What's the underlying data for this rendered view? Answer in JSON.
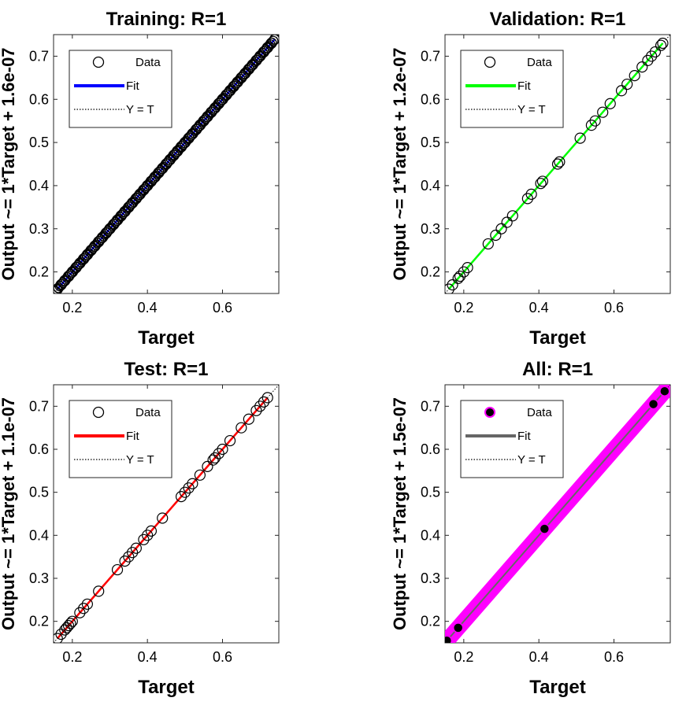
{
  "chart_data": [
    {
      "type": "scatter",
      "title": "Training: R=1",
      "xlabel": "Target",
      "ylabel": "Output ~= 1*Target + 1.6e-07",
      "xlim": [
        0.15,
        0.75
      ],
      "ylim": [
        0.15,
        0.75
      ],
      "xticks": [
        0.2,
        0.4,
        0.6
      ],
      "yticks": [
        0.2,
        0.3,
        0.4,
        0.5,
        0.6,
        0.7
      ],
      "fit_color": "#0000ff",
      "marker_fill": "none",
      "legend": {
        "position": "top-left",
        "entries": [
          "Data",
          "Fit",
          "Y = T"
        ]
      },
      "fit": {
        "slope": 1,
        "intercept": 1.6e-07
      },
      "series": [
        {
          "name": "Data",
          "x": [
            0.16,
            0.17,
            0.18,
            0.19,
            0.2,
            0.21,
            0.22,
            0.23,
            0.24,
            0.25,
            0.26,
            0.27,
            0.28,
            0.29,
            0.3,
            0.31,
            0.32,
            0.33,
            0.34,
            0.35,
            0.36,
            0.37,
            0.38,
            0.39,
            0.4,
            0.41,
            0.42,
            0.43,
            0.44,
            0.45,
            0.46,
            0.47,
            0.48,
            0.49,
            0.5,
            0.51,
            0.52,
            0.53,
            0.54,
            0.55,
            0.56,
            0.57,
            0.58,
            0.59,
            0.6,
            0.61,
            0.62,
            0.63,
            0.64,
            0.65,
            0.66,
            0.67,
            0.68,
            0.69,
            0.7,
            0.71,
            0.72,
            0.73,
            0.74
          ],
          "y": [
            0.16,
            0.17,
            0.18,
            0.19,
            0.2,
            0.21,
            0.22,
            0.23,
            0.24,
            0.25,
            0.26,
            0.27,
            0.28,
            0.29,
            0.3,
            0.31,
            0.32,
            0.33,
            0.34,
            0.35,
            0.36,
            0.37,
            0.38,
            0.39,
            0.4,
            0.41,
            0.42,
            0.43,
            0.44,
            0.45,
            0.46,
            0.47,
            0.48,
            0.49,
            0.5,
            0.51,
            0.52,
            0.53,
            0.54,
            0.55,
            0.56,
            0.57,
            0.58,
            0.59,
            0.6,
            0.61,
            0.62,
            0.63,
            0.64,
            0.65,
            0.66,
            0.67,
            0.68,
            0.69,
            0.7,
            0.71,
            0.72,
            0.73,
            0.74
          ]
        }
      ]
    },
    {
      "type": "scatter",
      "title": "Validation: R=1",
      "xlabel": "Target",
      "ylabel": "Output ~= 1*Target + 1.2e-07",
      "xlim": [
        0.15,
        0.75
      ],
      "ylim": [
        0.15,
        0.75
      ],
      "xticks": [
        0.2,
        0.4,
        0.6
      ],
      "yticks": [
        0.2,
        0.3,
        0.4,
        0.5,
        0.6,
        0.7
      ],
      "fit_color": "#00ff00",
      "marker_fill": "none",
      "legend": {
        "position": "top-left",
        "entries": [
          "Data",
          "Fit",
          "Y = T"
        ]
      },
      "fit": {
        "slope": 1,
        "intercept": 1.2e-07
      },
      "series": [
        {
          "name": "Data",
          "x": [
            0.16,
            0.17,
            0.185,
            0.19,
            0.2,
            0.21,
            0.265,
            0.285,
            0.3,
            0.315,
            0.33,
            0.37,
            0.38,
            0.405,
            0.41,
            0.45,
            0.455,
            0.51,
            0.54,
            0.55,
            0.57,
            0.59,
            0.62,
            0.635,
            0.655,
            0.675,
            0.69,
            0.7,
            0.71,
            0.725,
            0.73
          ],
          "y": [
            0.16,
            0.17,
            0.185,
            0.19,
            0.2,
            0.21,
            0.265,
            0.285,
            0.3,
            0.315,
            0.33,
            0.37,
            0.38,
            0.405,
            0.41,
            0.45,
            0.455,
            0.51,
            0.54,
            0.55,
            0.57,
            0.59,
            0.62,
            0.635,
            0.655,
            0.675,
            0.69,
            0.7,
            0.71,
            0.725,
            0.73
          ]
        }
      ]
    },
    {
      "type": "scatter",
      "title": "Test: R=1",
      "xlabel": "Target",
      "ylabel": "Output ~= 1*Target + 1.1e-07",
      "xlim": [
        0.15,
        0.75
      ],
      "ylim": [
        0.15,
        0.75
      ],
      "xticks": [
        0.2,
        0.4,
        0.6
      ],
      "yticks": [
        0.2,
        0.3,
        0.4,
        0.5,
        0.6,
        0.7
      ],
      "fit_color": "#ff0000",
      "marker_fill": "none",
      "legend": {
        "position": "top-left",
        "entries": [
          "Data",
          "Fit",
          "Y = T"
        ]
      },
      "fit": {
        "slope": 1,
        "intercept": 1.1e-07
      },
      "series": [
        {
          "name": "Data",
          "x": [
            0.16,
            0.17,
            0.18,
            0.185,
            0.19,
            0.195,
            0.2,
            0.22,
            0.23,
            0.24,
            0.27,
            0.32,
            0.34,
            0.35,
            0.36,
            0.37,
            0.39,
            0.4,
            0.41,
            0.44,
            0.49,
            0.5,
            0.51,
            0.52,
            0.54,
            0.56,
            0.575,
            0.58,
            0.59,
            0.6,
            0.62,
            0.65,
            0.67,
            0.69,
            0.7,
            0.71,
            0.72
          ],
          "y": [
            0.16,
            0.17,
            0.18,
            0.185,
            0.19,
            0.195,
            0.2,
            0.22,
            0.23,
            0.24,
            0.27,
            0.32,
            0.34,
            0.35,
            0.36,
            0.37,
            0.39,
            0.4,
            0.41,
            0.44,
            0.49,
            0.5,
            0.51,
            0.52,
            0.54,
            0.56,
            0.575,
            0.58,
            0.59,
            0.6,
            0.62,
            0.65,
            0.67,
            0.69,
            0.7,
            0.71,
            0.72
          ]
        }
      ]
    },
    {
      "type": "scatter",
      "title": "All: R=1",
      "xlabel": "Target",
      "ylabel": "Output ~= 1*Target + 1.5e-07",
      "xlim": [
        0.15,
        0.75
      ],
      "ylim": [
        0.15,
        0.75
      ],
      "xticks": [
        0.2,
        0.4,
        0.6
      ],
      "yticks": [
        0.2,
        0.3,
        0.4,
        0.5,
        0.6,
        0.7
      ],
      "fit_color": "#666666",
      "marker_fill": "#000000",
      "band_color": "#ff00ff",
      "legend": {
        "position": "top-left",
        "entries": [
          "Data",
          "Fit",
          "Y = T"
        ]
      },
      "fit": {
        "slope": 1,
        "intercept": 1.5e-07
      },
      "series": [
        {
          "name": "Data",
          "x": [
            0.155,
            0.185,
            0.415,
            0.705,
            0.735
          ],
          "y": [
            0.155,
            0.185,
            0.415,
            0.705,
            0.735
          ]
        }
      ]
    }
  ]
}
